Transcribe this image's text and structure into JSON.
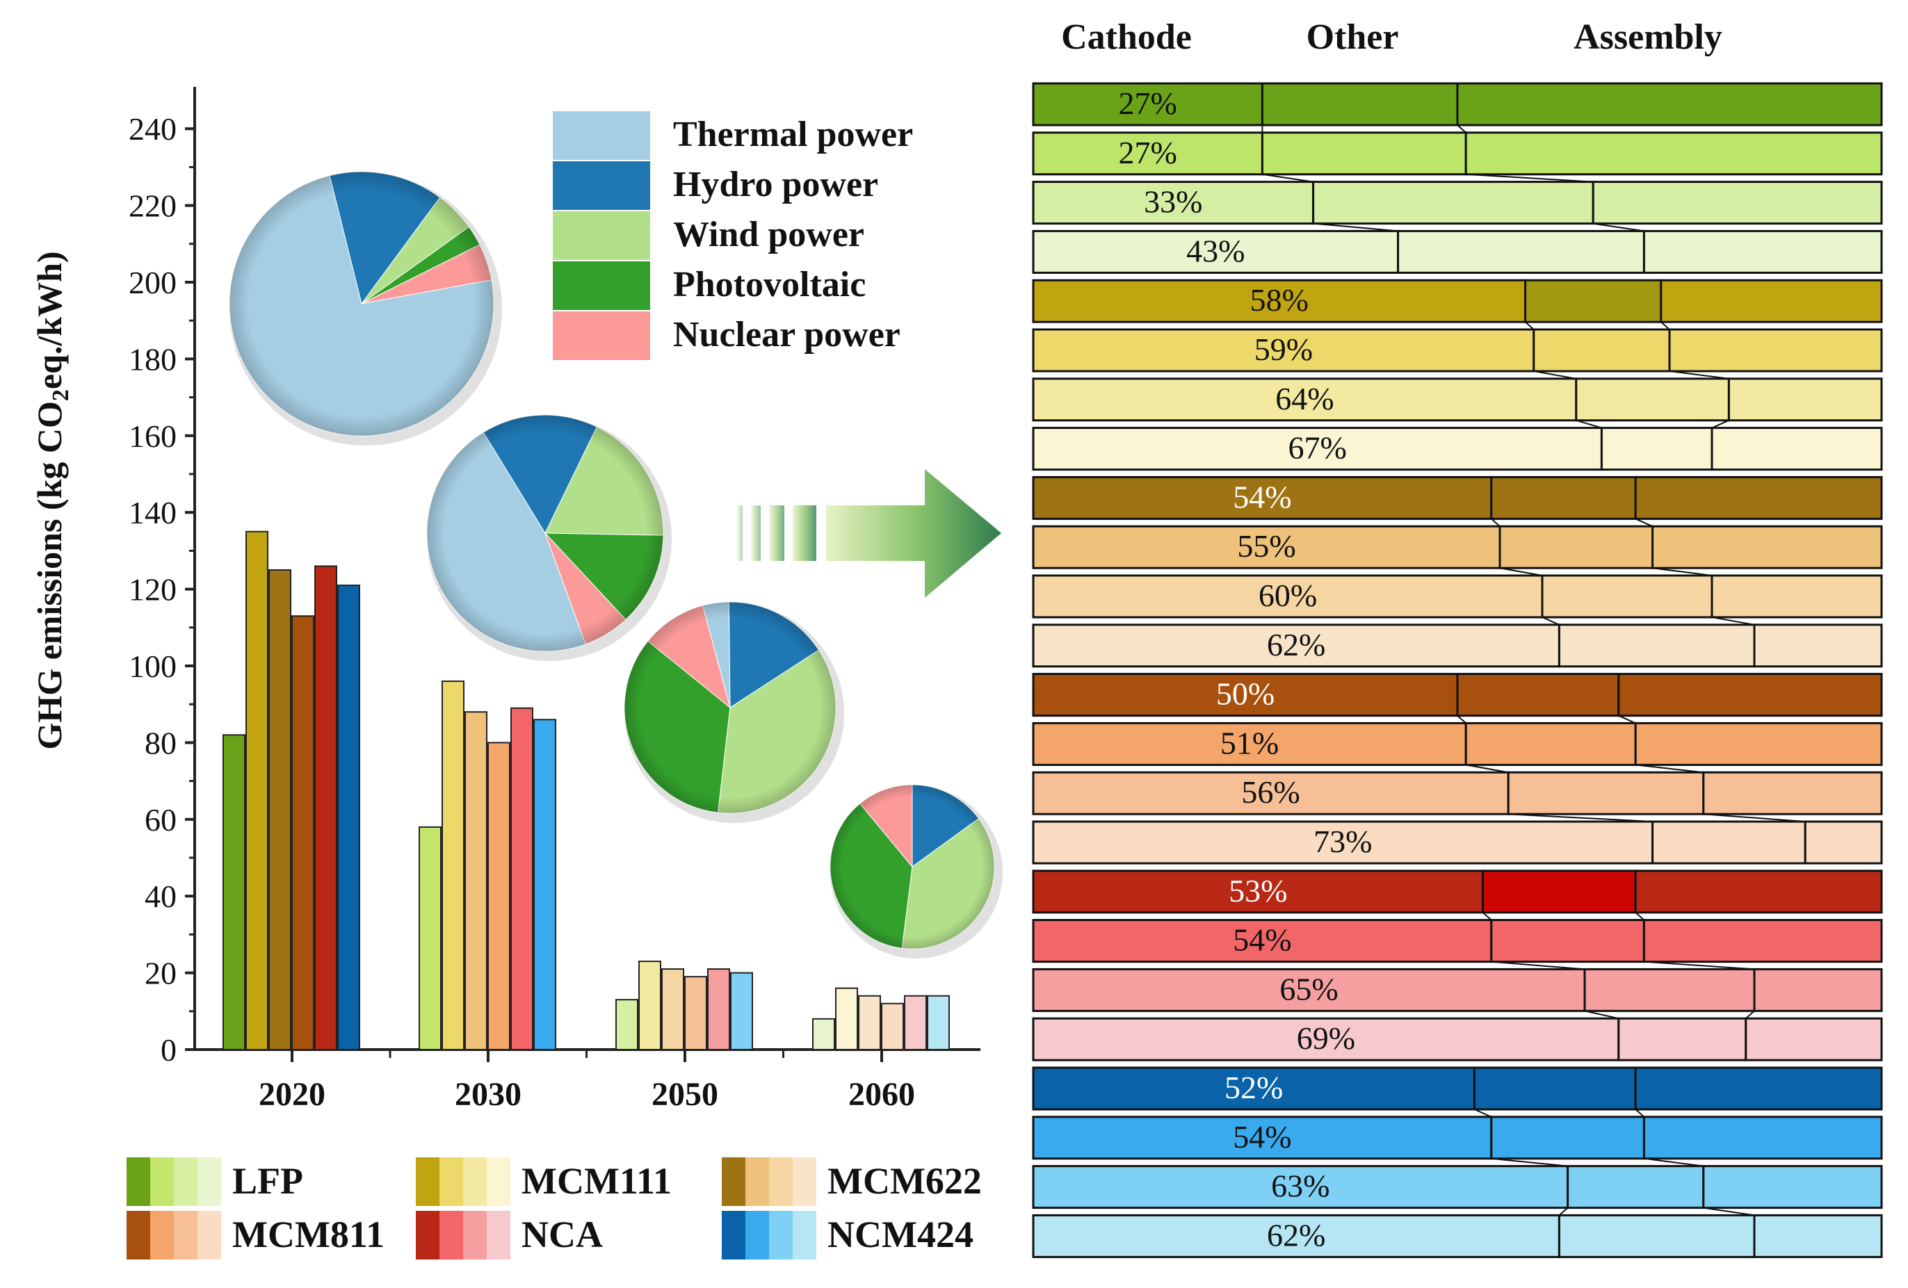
{
  "chart_data": [
    {
      "type": "bar",
      "title": "",
      "ylabel_parts": [
        "GHG emissions (kg CO",
        "2",
        "eq./kWh)"
      ],
      "ylim": [
        0,
        250
      ],
      "yticks": [
        0,
        20,
        40,
        60,
        80,
        100,
        120,
        140,
        160,
        180,
        200,
        220,
        240
      ],
      "categories": [
        "2020",
        "2030",
        "2050",
        "2060"
      ],
      "series": [
        {
          "name": "LFP",
          "values": [
            82,
            58,
            13,
            8
          ],
          "colors": [
            "#6aa318",
            "#c4e66c",
            "#d7efa3",
            "#e8f5cf"
          ]
        },
        {
          "name": "MCM111",
          "values": [
            135,
            96,
            23,
            16
          ],
          "colors": [
            "#c1a510",
            "#ecd96a",
            "#f4e9a0",
            "#fbf5d4"
          ]
        },
        {
          "name": "MCM622",
          "values": [
            125,
            88,
            21,
            14
          ],
          "colors": [
            "#9e7314",
            "#eec27b",
            "#f6d6a2",
            "#f8e4c8"
          ]
        },
        {
          "name": "MCM811",
          "values": [
            113,
            80,
            19,
            12
          ],
          "colors": [
            "#a8500e",
            "#f4a56a",
            "#f7bf96",
            "#f9dcc2"
          ]
        },
        {
          "name": "NCA",
          "values": [
            126,
            89,
            21,
            14
          ],
          "colors": [
            "#b82814",
            "#f36668",
            "#f59fa1",
            "#f7c9cd"
          ]
        },
        {
          "name": "NCM424",
          "values": [
            121,
            86,
            20,
            14
          ],
          "colors": [
            "#0a63a8",
            "#3aaaee",
            "#7ed0f4",
            "#b6e6f4"
          ]
        }
      ]
    },
    {
      "type": "pie",
      "categories": [
        "Thermal power",
        "Hydro power",
        "Wind power",
        "Photovoltaic",
        "Nuclear power"
      ],
      "colors": [
        "#a6cee3",
        "#1f78b4",
        "#b2df8a",
        "#33a02c",
        "#fb9a99"
      ],
      "pies": [
        {
          "year": "2020",
          "values": [
            74,
            14,
            5,
            2.5,
            4.5
          ]
        },
        {
          "year": "2030",
          "values": [
            44,
            15,
            17,
            12,
            6
          ]
        },
        {
          "year": "2050",
          "values": [
            4,
            16,
            36,
            34,
            10
          ]
        },
        {
          "year": "2060",
          "values": [
            0,
            15,
            37,
            37,
            11
          ]
        }
      ]
    },
    {
      "type": "stacked_bar",
      "columns": [
        "Cathode",
        "Other",
        "Assembly"
      ],
      "rows": [
        {
          "label": "27%",
          "cathode": 27,
          "other": 23,
          "fill": "#6aa318",
          "dark": false
        },
        {
          "label": "27%",
          "cathode": 27,
          "other": 24,
          "fill": "#bde56a",
          "dark": false
        },
        {
          "label": "33%",
          "cathode": 33,
          "other": 33,
          "fill": "#d4eea3",
          "dark": false
        },
        {
          "label": "43%",
          "cathode": 43,
          "other": 29,
          "fill": "#e8f5cf",
          "dark": false
        },
        {
          "label": "58%",
          "cathode": 58,
          "other": 16,
          "fill": "#c1a510",
          "other_fill": "#a39a12",
          "dark": false
        },
        {
          "label": "59%",
          "cathode": 59,
          "other": 16,
          "fill": "#ecd96a",
          "dark": false
        },
        {
          "label": "64%",
          "cathode": 64,
          "other": 18,
          "fill": "#f4e9a0",
          "dark": false
        },
        {
          "label": "67%",
          "cathode": 67,
          "other": 13,
          "fill": "#fbf5d4",
          "dark": false
        },
        {
          "label": "54%",
          "cathode": 54,
          "other": 17,
          "fill": "#9e7314",
          "dark": true
        },
        {
          "label": "55%",
          "cathode": 55,
          "other": 18,
          "fill": "#eec27b",
          "dark": false
        },
        {
          "label": "60%",
          "cathode": 60,
          "other": 20,
          "fill": "#f6d6a2",
          "dark": false
        },
        {
          "label": "62%",
          "cathode": 62,
          "other": 23,
          "fill": "#f8e4c8",
          "dark": false
        },
        {
          "label": "50%",
          "cathode": 50,
          "other": 19,
          "fill": "#a8500e",
          "dark": true
        },
        {
          "label": "51%",
          "cathode": 51,
          "other": 20,
          "fill": "#f4a56a",
          "dark": false
        },
        {
          "label": "56%",
          "cathode": 56,
          "other": 23,
          "fill": "#f7bf96",
          "dark": false
        },
        {
          "label": "73%",
          "cathode": 73,
          "other": 18,
          "fill": "#f9dcc2",
          "dark": false
        },
        {
          "label": "53%",
          "cathode": 53,
          "other": 18,
          "fill": "#b82814",
          "other_fill": "#cf0505",
          "dark": true
        },
        {
          "label": "54%",
          "cathode": 54,
          "other": 18,
          "fill": "#f36668",
          "dark": false
        },
        {
          "label": "65%",
          "cathode": 65,
          "other": 20,
          "fill": "#f59fa1",
          "dark": false
        },
        {
          "label": "69%",
          "cathode": 69,
          "other": 15,
          "fill": "#f7c9cd",
          "dark": false
        },
        {
          "label": "52%",
          "cathode": 52,
          "other": 19,
          "fill": "#0a63a8",
          "dark": true
        },
        {
          "label": "54%",
          "cathode": 54,
          "other": 18,
          "fill": "#3aaaee",
          "dark": false
        },
        {
          "label": "63%",
          "cathode": 63,
          "other": 16,
          "fill": "#7ed0f4",
          "dark": false
        },
        {
          "label": "62%",
          "cathode": 62,
          "other": 23,
          "fill": "#b6e6f4",
          "dark": false
        }
      ]
    }
  ],
  "legend_materials": [
    "LFP",
    "MCM111",
    "MCM622",
    "MCM811",
    "NCA",
    "NCM424"
  ],
  "legend_sources": [
    "Thermal power",
    "Hydro power",
    "Wind power",
    "Photovoltaic",
    "Nuclear power"
  ]
}
